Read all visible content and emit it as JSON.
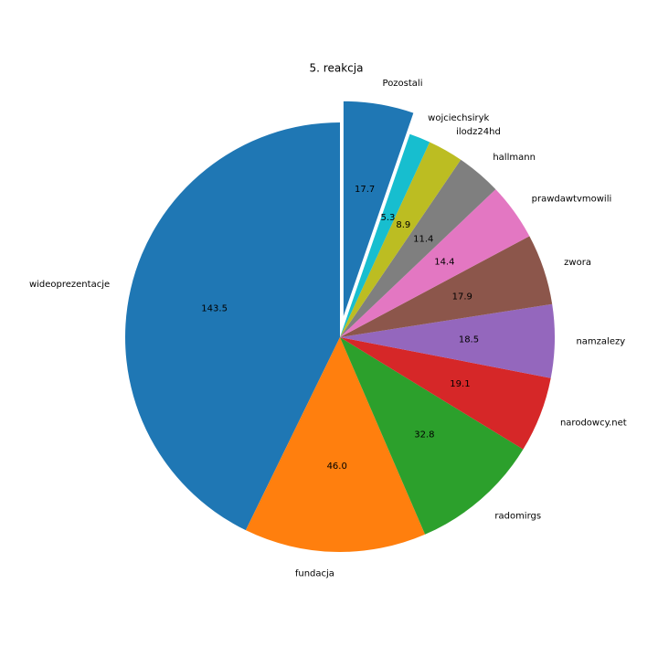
{
  "chart_data": {
    "type": "pie",
    "title": "5. reakcja",
    "categories": [
      "wideoprezentacje",
      "fundacja",
      "radomirgs",
      "narodowcy.net",
      "namzalezy",
      "zwora",
      "prawdawtvmowili",
      "hallmann",
      "ilodz24hd",
      "wojciechsiryk",
      "Pozostali"
    ],
    "values": [
      143.5,
      46.0,
      32.8,
      19.1,
      18.5,
      17.9,
      14.4,
      11.4,
      8.9,
      5.3,
      17.7
    ],
    "value_labels": [
      "143.5",
      "46.0",
      "32.8",
      "19.1",
      "18.5",
      "17.9",
      "14.4",
      "11.4",
      "8.9",
      "5.3",
      "17.7"
    ],
    "colors": [
      "#1f77b4",
      "#ff7f0e",
      "#2ca02c",
      "#d62728",
      "#9467bd",
      "#8c564b",
      "#e377c2",
      "#7f7f7f",
      "#bcbd22",
      "#17becf",
      "#1f77b4"
    ],
    "explode": [
      0,
      0,
      0,
      0,
      0,
      0,
      0,
      0,
      0,
      0,
      0.1
    ]
  }
}
